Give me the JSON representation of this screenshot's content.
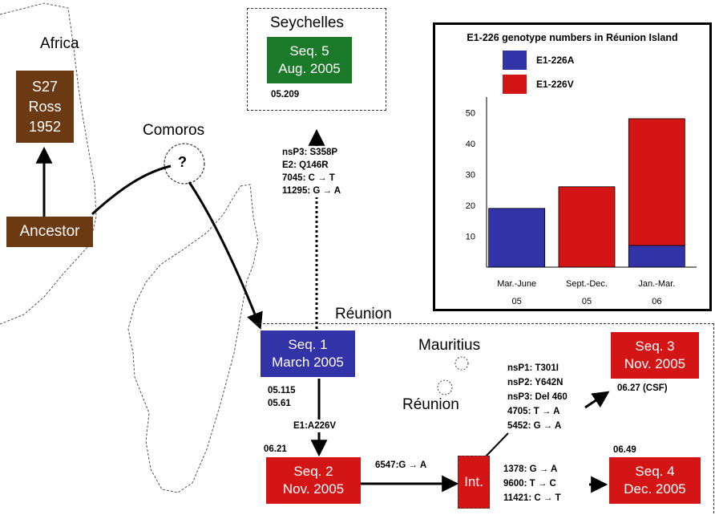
{
  "regions": {
    "africa": "Africa",
    "comoros": "Comoros",
    "seychelles": "Seychelles",
    "reunion": "Réunion",
    "mauritius": "Mauritius",
    "reunion_inset": "Réunion",
    "comoros_unknown": "?"
  },
  "nodes": {
    "s27": [
      "S27",
      "Ross",
      "1952"
    ],
    "ancestor": "Ancestor",
    "seq5": [
      "Seq. 5",
      "Aug. 2005"
    ],
    "seq1": [
      "Seq. 1",
      "March 2005"
    ],
    "seq2": [
      "Seq. 2",
      "Nov. 2005"
    ],
    "seq3": [
      "Seq. 3",
      "Nov. 2005"
    ],
    "seq4": [
      "Seq. 4",
      "Dec. 2005"
    ],
    "int": "Int."
  },
  "isolates": {
    "seq5": "05.209",
    "seq1": [
      "05.115",
      "05.61"
    ],
    "seq2": "06.21",
    "seq3": "06.27 (CSF)",
    "seq4": "06.49"
  },
  "mutations": {
    "seq1_to_seq5": [
      "nsP3: S358P",
      "E2: Q146R",
      "7045: C → T",
      "11295: G → A"
    ],
    "seq1_to_seq2": "E1:A226V",
    "seq2_to_int": "6547:G → A",
    "int_to_seq3": [
      "nsP1: T301I",
      "nsP2: Y642N",
      "nsP3: Del 460",
      "4705: T → A",
      "5452: G → A"
    ],
    "int_to_seq4": [
      "1378: G → A",
      "9600: T → C",
      "11421: C → T"
    ]
  },
  "colors": {
    "brown": "#6b3a12",
    "green": "#1a7a2a",
    "blue": "#3333a8",
    "red": "#d41515"
  },
  "chart_data": {
    "type": "bar",
    "stacked": true,
    "title": "E1-226 genotype numbers in Réunion Island",
    "categories": [
      [
        "Mar.-June",
        "05"
      ],
      [
        "Sept.-Dec.",
        "05"
      ],
      [
        "Jan.-Mar.",
        "06"
      ]
    ],
    "series": [
      {
        "name": "E1-226A",
        "color": "#3333a8",
        "values": [
          19,
          0,
          7
        ]
      },
      {
        "name": "E1-226V",
        "color": "#d41515",
        "values": [
          0,
          26,
          41
        ]
      }
    ],
    "yticks": [
      10,
      20,
      30,
      40,
      50
    ],
    "ylim": [
      0,
      55
    ],
    "legend_position": "top-left",
    "grid": false
  }
}
